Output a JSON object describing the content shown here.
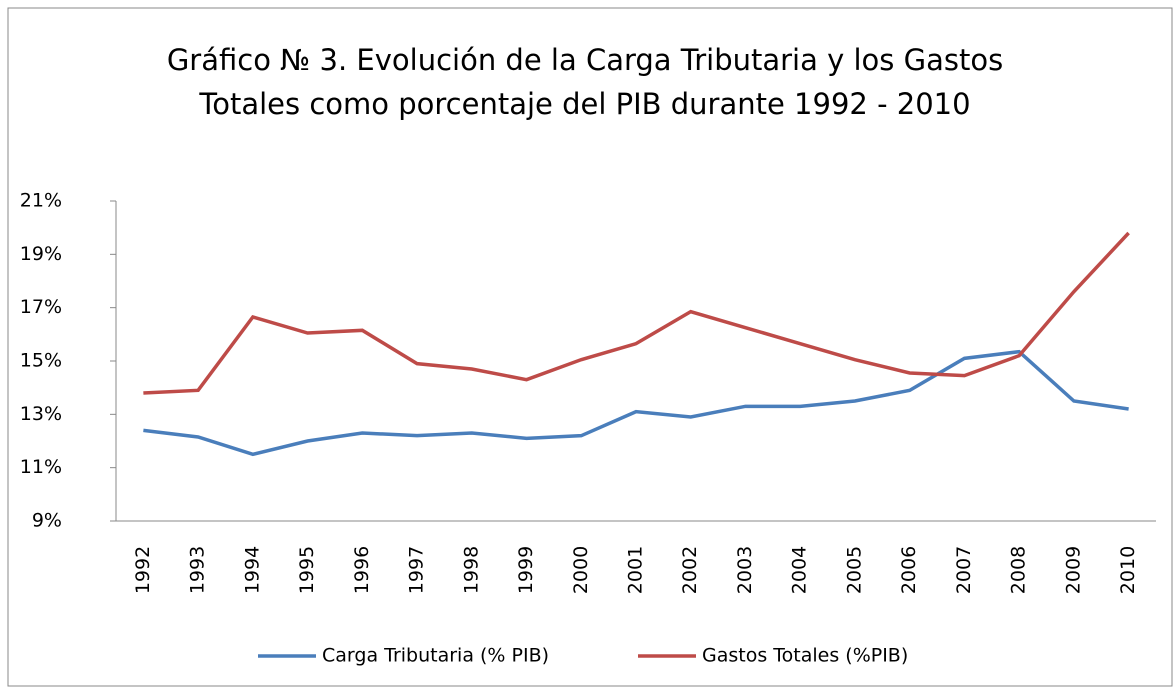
{
  "chart_data": {
    "type": "line",
    "title": "Gráfico № 3. Evolución de la Carga Tributaria y los Gastos Totales como porcentaje del PIB durante 1992 - 2010",
    "categories": [
      "1992",
      "1993",
      "1994",
      "1995",
      "1996",
      "1997",
      "1998",
      "1999",
      "2000",
      "2001",
      "2002",
      "2003",
      "2004",
      "2005",
      "2006",
      "2007",
      "2008",
      "2009",
      "2010"
    ],
    "series": [
      {
        "name": "Carga Tributaria (% PIB)",
        "color": "#4a7ebb",
        "values": [
          12.4,
          12.15,
          11.5,
          12.0,
          12.3,
          12.2,
          12.3,
          12.1,
          12.2,
          13.1,
          12.9,
          13.3,
          13.3,
          13.5,
          13.9,
          15.1,
          15.35,
          13.5,
          13.2
        ]
      },
      {
        "name": "Gastos Totales (%PIB)",
        "color": "#be4b48",
        "values": [
          13.8,
          13.9,
          16.65,
          16.05,
          16.15,
          14.9,
          14.7,
          14.3,
          15.05,
          15.65,
          16.85,
          16.25,
          15.65,
          15.05,
          14.55,
          14.45,
          15.2,
          17.6,
          19.8
        ]
      }
    ],
    "ylim": [
      9,
      21
    ],
    "yticks": [
      {
        "value": 9,
        "label": "9%"
      },
      {
        "value": 11,
        "label": "11%"
      },
      {
        "value": 13,
        "label": "13%"
      },
      {
        "value": 15,
        "label": "15%"
      },
      {
        "value": 17,
        "label": "17%"
      },
      {
        "value": 19,
        "label": "19%"
      },
      {
        "value": 21,
        "label": "21%"
      }
    ],
    "legend": "bottom"
  }
}
